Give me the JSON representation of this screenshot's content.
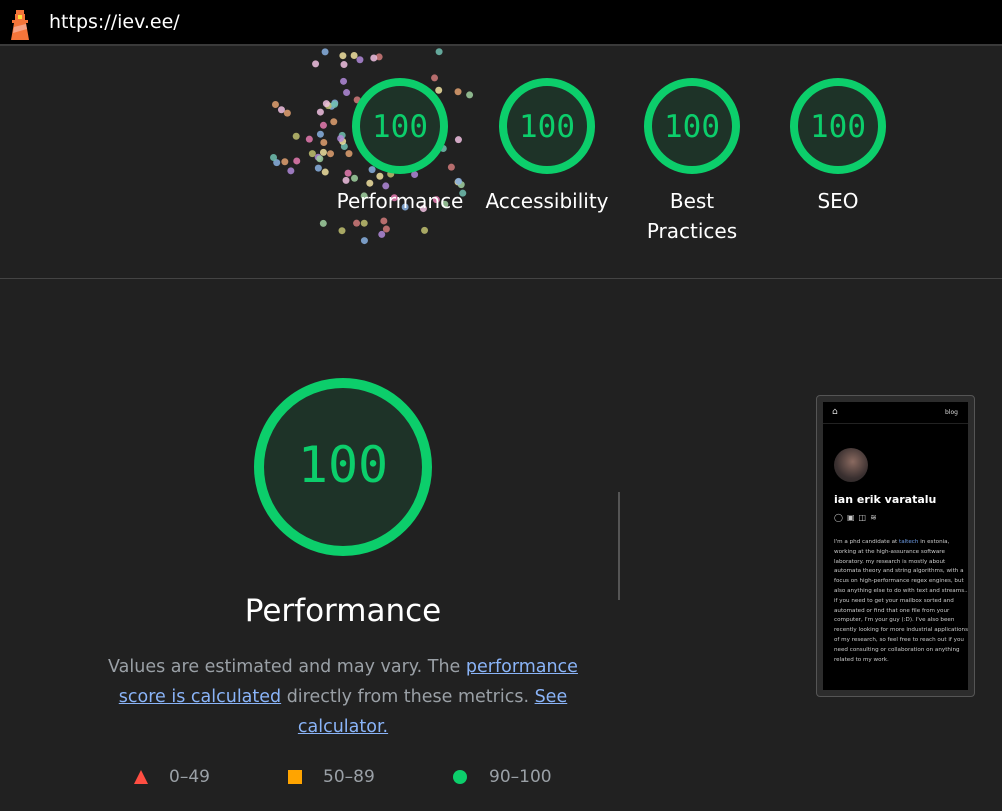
{
  "topbar": {
    "url": "https://iev.ee/",
    "logo": "lighthouse-logo"
  },
  "summary_gauges": [
    {
      "score": "100",
      "label": "Performance"
    },
    {
      "score": "100",
      "label": "Accessibility"
    },
    {
      "score": "100",
      "label": "Best Practices"
    },
    {
      "score": "100",
      "label": "SEO"
    }
  ],
  "performance": {
    "score": "100",
    "title": "Performance",
    "desc_pre": "Values are estimated and may vary. The ",
    "desc_link1": "performance score is calculated",
    "desc_mid": " directly from these metrics. ",
    "desc_link2": "See calculator."
  },
  "legend": [
    {
      "icon": "triangle-fail-icon",
      "range": "0–49",
      "color": "#ff4e42"
    },
    {
      "icon": "square-average-icon",
      "range": "50–89",
      "color": "#ffa400"
    },
    {
      "icon": "circle-pass-icon",
      "range": "90–100",
      "color": "#0cce6b"
    }
  ],
  "colors": {
    "pass": "#0cce6b",
    "pass_bg": "#1e3328"
  },
  "screenshot": {
    "nav_link": "blog",
    "name": "ian erik varatalu",
    "bio_pre": "I'm a phd candidate at ",
    "bio_link": "taltech",
    "bio_post": " in estonia, working at the high-assurance software laboratory. my research is mostly about automata theory and string algorithms, with a focus on high-performance regex engines, but also anything else to do with text and streams.. if you need to get your mailbox sorted and automated or find that one file from your computer, I'm your guy (:D). I've also been recently looking for more industrial applications of my research, so feel free to reach out if you need consulting or collaboration on anything related to my work."
  }
}
